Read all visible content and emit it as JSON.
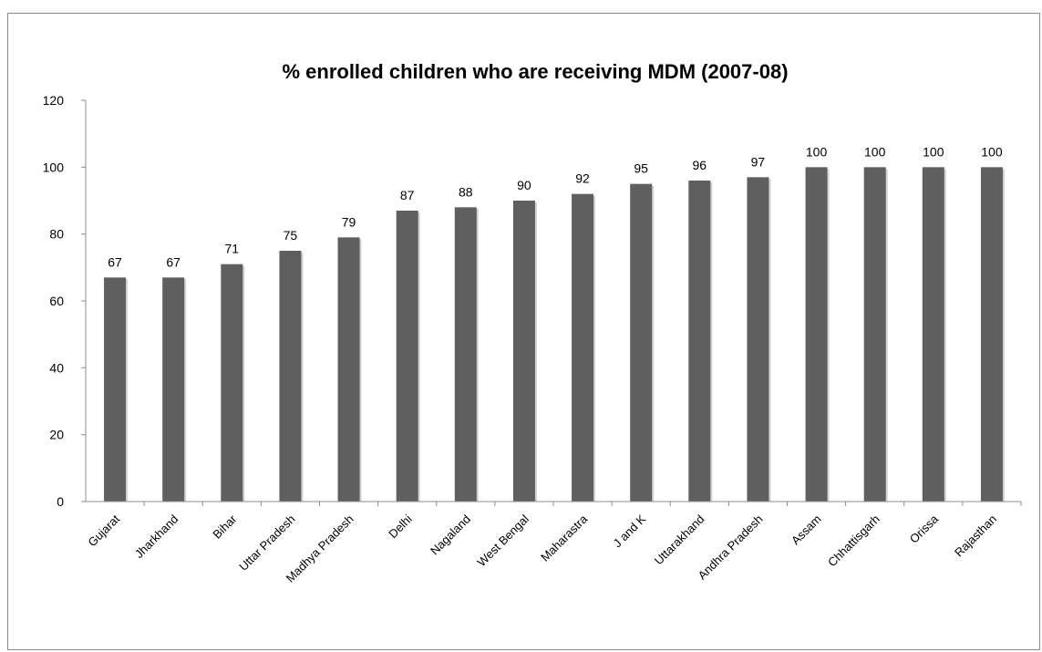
{
  "chart_data": {
    "type": "bar",
    "title": "% enrolled children who are receiving MDM (2007-08)",
    "xlabel": "",
    "ylabel": "",
    "ylim": [
      0,
      120
    ],
    "yticks": [
      0,
      20,
      40,
      60,
      80,
      100,
      120
    ],
    "grid": false,
    "legend": "none",
    "bar_color": "#5f5f5f",
    "categories": [
      "Gujarat",
      "Jharkhand",
      "Bihar",
      "Uttar Pradesh",
      "Madhya Pradesh",
      "Delhi",
      "Nagaland",
      "West Bengal",
      "Maharastra",
      "J and K",
      "Uttarakhand",
      "Andhra Pradesh",
      "Assam",
      "Chhattisgarh",
      "Orissa",
      "Rajasthan"
    ],
    "values": [
      67,
      67,
      71,
      75,
      79,
      87,
      88,
      90,
      92,
      95,
      96,
      97,
      100,
      100,
      100,
      100
    ]
  }
}
